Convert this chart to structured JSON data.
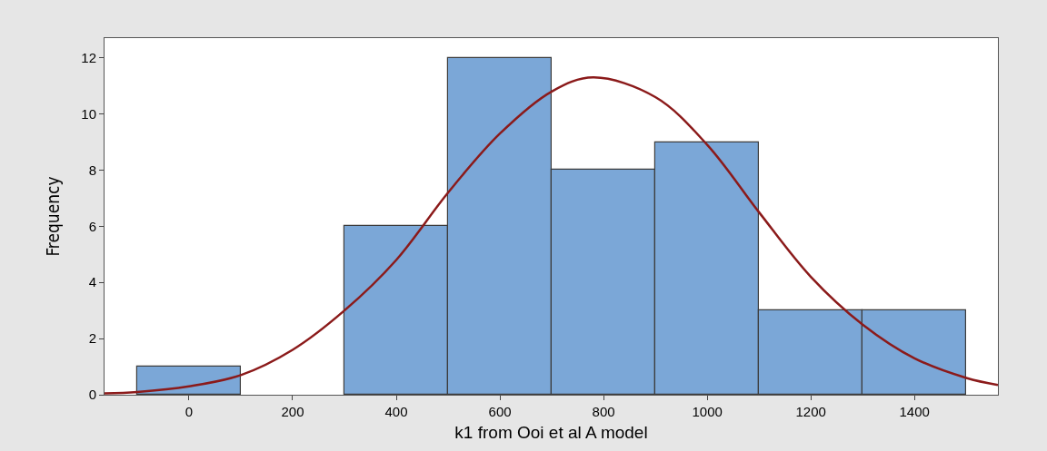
{
  "chart_data": {
    "type": "histogram",
    "xlabel": "k1 from Ooi et al A model",
    "ylabel": "Frequency",
    "bins": [
      -100,
      100,
      300,
      500,
      700,
      900,
      1100,
      1300,
      1500
    ],
    "values": [
      1,
      0,
      6,
      12,
      8,
      9,
      3,
      3
    ],
    "color": "#7ba7d7",
    "series": [
      {
        "type": "line",
        "color": "#8b1a1a",
        "x": [
          -163,
          -100,
          0,
          100,
          200,
          300,
          400,
          500,
          600,
          700,
          780,
          900,
          1000,
          1100,
          1200,
          1300,
          1400,
          1500,
          1561
        ],
        "values": [
          0.05,
          0.1,
          0.3,
          0.7,
          1.6,
          3.0,
          4.8,
          7.2,
          9.3,
          10.8,
          11.3,
          10.6,
          8.9,
          6.5,
          4.2,
          2.5,
          1.3,
          0.6,
          0.35
        ]
      }
    ],
    "xlim": [
      -163,
      1561
    ],
    "xticks": [
      0,
      200,
      400,
      600,
      800,
      1000,
      1200,
      1400
    ],
    "ylim": [
      0,
      12.7
    ],
    "yticks": [
      0,
      2,
      4,
      6,
      8,
      10,
      12
    ],
    "grid": false,
    "marker": "none",
    "line_style": "solid"
  }
}
